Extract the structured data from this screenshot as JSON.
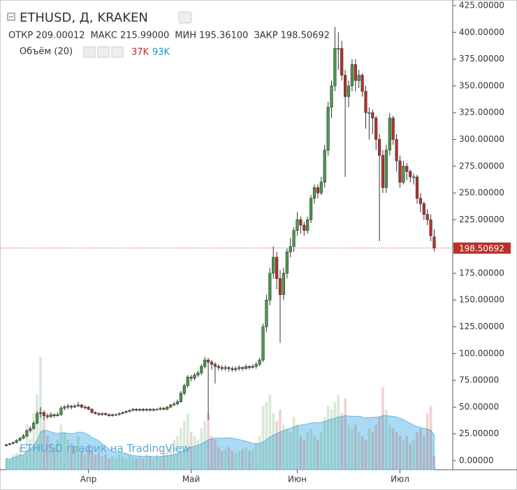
{
  "chart_data": {
    "type": "candlestick",
    "title": "ETHUSD, Д, KRAKEN",
    "legend_items": [
      {
        "label": "ОТКР",
        "value": "209.00012"
      },
      {
        "label": "МАКС",
        "value": "215.99000"
      },
      {
        "label": "МИН",
        "value": "195.36100"
      },
      {
        "label": "ЗАКР",
        "value": "198.50692"
      }
    ],
    "volume_title": "Объём (20)",
    "volume_labels": [
      "37K",
      "93K"
    ],
    "watermark": "ETHUSD график на TradingView",
    "up_color": "#4a9a4a",
    "down_color": "#b8322a",
    "volume_ma_color": "#8fcdf0",
    "categories": [
      null,
      null,
      null,
      null,
      null,
      null,
      null,
      null,
      null,
      null,
      null,
      null,
      null,
      null,
      null,
      null,
      null,
      null,
      null,
      null,
      null,
      null,
      null,
      null,
      "Апр",
      null,
      null,
      null,
      null,
      null,
      null,
      null,
      null,
      null,
      null,
      null,
      null,
      null,
      null,
      null,
      null,
      null,
      null,
      null,
      null,
      null,
      null,
      null,
      null,
      null,
      null,
      null,
      null,
      null,
      "Май",
      null,
      null,
      null,
      null,
      null,
      null,
      null,
      null,
      null,
      null,
      null,
      null,
      null,
      null,
      null,
      null,
      null,
      null,
      null,
      null,
      null,
      null,
      null,
      null,
      null,
      null,
      null,
      null,
      null,
      null,
      "Июн",
      null,
      null,
      null,
      null,
      null,
      null,
      null,
      null,
      null,
      null,
      null,
      null,
      null,
      null,
      null,
      null,
      null,
      null,
      null,
      null,
      null,
      null,
      null,
      null,
      null,
      null,
      null,
      null,
      null,
      "Июл",
      null,
      null,
      null,
      null,
      null,
      null,
      null,
      null,
      null,
      null
    ],
    "ohlc": [
      [
        14,
        15.5,
        13,
        15
      ],
      [
        15,
        16.5,
        14,
        16
      ],
      [
        16,
        18,
        15,
        17
      ],
      [
        17,
        20,
        16,
        19
      ],
      [
        19,
        22,
        18,
        21
      ],
      [
        21,
        25,
        20,
        23
      ],
      [
        23,
        29,
        22,
        28
      ],
      [
        28,
        32,
        26,
        30
      ],
      [
        30,
        37,
        29,
        35
      ],
      [
        35,
        46,
        34,
        44
      ],
      [
        44,
        50,
        40,
        45
      ],
      [
        45,
        47,
        38,
        42
      ],
      [
        42,
        44,
        39,
        41
      ],
      [
        41,
        45,
        40,
        43
      ],
      [
        43,
        44,
        40,
        42
      ],
      [
        42,
        45,
        41,
        43
      ],
      [
        43,
        51,
        42,
        49
      ],
      [
        49,
        52,
        47,
        50
      ],
      [
        50,
        53,
        48,
        51
      ],
      [
        51,
        52,
        48,
        50
      ],
      [
        50,
        53,
        49,
        51
      ],
      [
        51,
        55,
        50,
        52
      ],
      [
        52,
        53,
        49,
        50
      ],
      [
        50,
        52,
        48,
        50
      ],
      [
        50,
        51,
        47,
        48
      ],
      [
        48,
        49,
        44,
        45
      ],
      [
        45,
        46,
        43,
        44
      ],
      [
        44,
        45,
        42,
        43
      ],
      [
        43,
        45,
        42,
        44
      ],
      [
        44,
        45,
        42,
        43
      ],
      [
        43,
        44,
        41,
        42
      ],
      [
        42,
        44,
        41,
        43
      ],
      [
        43,
        44,
        42,
        43
      ],
      [
        43,
        45,
        42,
        44
      ],
      [
        44,
        46,
        43,
        45
      ],
      [
        45,
        47,
        44,
        46
      ],
      [
        46,
        48,
        45,
        47
      ],
      [
        47,
        49,
        46,
        48
      ],
      [
        48,
        49,
        46,
        47
      ],
      [
        47,
        49,
        46,
        48
      ],
      [
        48,
        49,
        46,
        47
      ],
      [
        47,
        49,
        46,
        48
      ],
      [
        48,
        49,
        46,
        47
      ],
      [
        47,
        49,
        46,
        48
      ],
      [
        48,
        49,
        47,
        48
      ],
      [
        48,
        50,
        47,
        49
      ],
      [
        49,
        50,
        47,
        48
      ],
      [
        48,
        51,
        47,
        50
      ],
      [
        50,
        53,
        49,
        52
      ],
      [
        52,
        55,
        51,
        53
      ],
      [
        53,
        57,
        52,
        55
      ],
      [
        55,
        65,
        54,
        63
      ],
      [
        63,
        72,
        61,
        70
      ],
      [
        70,
        80,
        68,
        78
      ],
      [
        78,
        80,
        74,
        77
      ],
      [
        77,
        82,
        75,
        80
      ],
      [
        80,
        84,
        78,
        82
      ],
      [
        82,
        90,
        80,
        88
      ],
      [
        88,
        97,
        86,
        94
      ],
      [
        94,
        96,
        38,
        92
      ],
      [
        92,
        94,
        85,
        90
      ],
      [
        90,
        92,
        72,
        88
      ],
      [
        88,
        90,
        84,
        87
      ],
      [
        87,
        89,
        84,
        86
      ],
      [
        86,
        89,
        84,
        87
      ],
      [
        87,
        88,
        83,
        86
      ],
      [
        86,
        88,
        83,
        85
      ],
      [
        85,
        88,
        83,
        86
      ],
      [
        86,
        89,
        84,
        87
      ],
      [
        87,
        88,
        84,
        86
      ],
      [
        86,
        90,
        85,
        88
      ],
      [
        88,
        89,
        85,
        87
      ],
      [
        87,
        90,
        86,
        88
      ],
      [
        88,
        92,
        86,
        90
      ],
      [
        90,
        96,
        88,
        94
      ],
      [
        94,
        128,
        92,
        125
      ],
      [
        125,
        155,
        120,
        150
      ],
      [
        150,
        180,
        145,
        175
      ],
      [
        175,
        200,
        170,
        190
      ],
      [
        190,
        195,
        160,
        170
      ],
      [
        170,
        178,
        110,
        155
      ],
      [
        155,
        180,
        150,
        175
      ],
      [
        175,
        198,
        170,
        195
      ],
      [
        195,
        208,
        190,
        200
      ],
      [
        200,
        218,
        195,
        215
      ],
      [
        215,
        232,
        210,
        225
      ],
      [
        225,
        228,
        212,
        220
      ],
      [
        220,
        223,
        210,
        215
      ],
      [
        215,
        228,
        212,
        225
      ],
      [
        225,
        248,
        222,
        245
      ],
      [
        245,
        258,
        240,
        255
      ],
      [
        255,
        258,
        245,
        250
      ],
      [
        250,
        265,
        248,
        260
      ],
      [
        260,
        295,
        255,
        290
      ],
      [
        290,
        335,
        285,
        330
      ],
      [
        330,
        355,
        320,
        350
      ],
      [
        350,
        405,
        345,
        385
      ],
      [
        385,
        400,
        365,
        385
      ],
      [
        385,
        392,
        355,
        360
      ],
      [
        360,
        365,
        265,
        340
      ],
      [
        340,
        355,
        330,
        350
      ],
      [
        350,
        375,
        345,
        370
      ],
      [
        370,
        375,
        345,
        355
      ],
      [
        355,
        365,
        348,
        360
      ],
      [
        360,
        362,
        340,
        345
      ],
      [
        345,
        350,
        310,
        325
      ],
      [
        325,
        330,
        300,
        325
      ],
      [
        325,
        328,
        305,
        320
      ],
      [
        320,
        322,
        290,
        300
      ],
      [
        300,
        305,
        205,
        285
      ],
      [
        285,
        290,
        250,
        255
      ],
      [
        255,
        295,
        250,
        290
      ],
      [
        290,
        325,
        285,
        320
      ],
      [
        320,
        322,
        295,
        300
      ],
      [
        300,
        305,
        270,
        280
      ],
      [
        280,
        285,
        255,
        260
      ],
      [
        260,
        280,
        258,
        275
      ],
      [
        275,
        278,
        262,
        270
      ],
      [
        270,
        272,
        260,
        265
      ],
      [
        265,
        268,
        258,
        265
      ],
      [
        265,
        267,
        240,
        245
      ],
      [
        245,
        250,
        232,
        240
      ],
      [
        240,
        242,
        225,
        230
      ],
      [
        230,
        235,
        220,
        225
      ],
      [
        225,
        230,
        205,
        210
      ],
      [
        209.00012,
        215.99,
        195.361,
        198.50692
      ]
    ],
    "volume": [
      30,
      25,
      40,
      45,
      60,
      40,
      120,
      80,
      150,
      200,
      300,
      150,
      90,
      70,
      60,
      80,
      120,
      100,
      80,
      70,
      60,
      90,
      50,
      40,
      60,
      50,
      40,
      45,
      35,
      40,
      30,
      35,
      30,
      40,
      35,
      30,
      40,
      35,
      30,
      35,
      30,
      40,
      35,
      30,
      40,
      35,
      45,
      50,
      60,
      80,
      90,
      110,
      130,
      150,
      100,
      90,
      80,
      110,
      130,
      150,
      90,
      80,
      60,
      50,
      55,
      60,
      50,
      45,
      50,
      55,
      60,
      50,
      55,
      70,
      90,
      170,
      180,
      200,
      150,
      130,
      160,
      120,
      110,
      100,
      140,
      120,
      90,
      80,
      100,
      110,
      90,
      80,
      100,
      140,
      170,
      160,
      180,
      200,
      150,
      190,
      120,
      110,
      120,
      100,
      90,
      80,
      110,
      100,
      120,
      140,
      220,
      160,
      120,
      110,
      100,
      90,
      80,
      90,
      70,
      80,
      100,
      110,
      90,
      150,
      170,
      37
    ],
    "volume_ma": [
      30,
      28,
      32,
      35,
      39,
      39,
      50,
      54,
      64,
      78,
      100,
      105,
      104,
      101,
      98,
      97,
      98,
      98,
      97,
      96,
      97,
      100,
      100,
      97,
      93,
      86,
      82,
      77,
      69,
      63,
      55,
      50,
      47,
      46,
      45,
      43,
      40,
      38,
      37,
      36,
      35,
      36,
      36,
      35,
      35,
      35,
      36,
      37,
      38,
      40,
      43,
      47,
      51,
      57,
      60,
      63,
      65,
      69,
      74,
      80,
      82,
      84,
      84,
      84,
      84,
      85,
      84,
      82,
      80,
      78,
      76,
      73,
      70,
      69,
      70,
      74,
      80,
      87,
      92,
      96,
      101,
      104,
      107,
      110,
      114,
      117,
      119,
      120,
      122,
      124,
      125,
      125,
      126,
      128,
      132,
      134,
      137,
      141,
      141,
      144,
      143,
      142,
      142,
      142,
      140,
      138,
      139,
      139,
      140,
      141,
      144,
      144,
      143,
      142,
      140,
      137,
      133,
      128,
      124,
      119,
      115,
      112,
      110,
      108,
      105,
      93
    ],
    "ylim": [
      0,
      425
    ],
    "yticks": [
      {
        "value": 0,
        "label": "0.00000"
      },
      {
        "value": 25,
        "label": "25.00000"
      },
      {
        "value": 50,
        "label": "50.00000"
      },
      {
        "value": 75,
        "label": "75.00000"
      },
      {
        "value": 100,
        "label": "100.00000"
      },
      {
        "value": 125,
        "label": "125.00000"
      },
      {
        "value": 150,
        "label": "150.00000"
      },
      {
        "value": 175,
        "label": "175.00000"
      },
      {
        "value": 200,
        "label": "200.00000"
      },
      {
        "value": 225,
        "label": "225.00000"
      },
      {
        "value": 250,
        "label": "250.00000"
      },
      {
        "value": 275,
        "label": "275.00000"
      },
      {
        "value": 300,
        "label": "300.00000"
      },
      {
        "value": 325,
        "label": "325.00000"
      },
      {
        "value": 350,
        "label": "350.00000"
      },
      {
        "value": 375,
        "label": "375.00000"
      },
      {
        "value": 400,
        "label": "400.00000"
      },
      {
        "value": 425,
        "label": "425.00000"
      }
    ],
    "last_price_label": "198.50692"
  }
}
